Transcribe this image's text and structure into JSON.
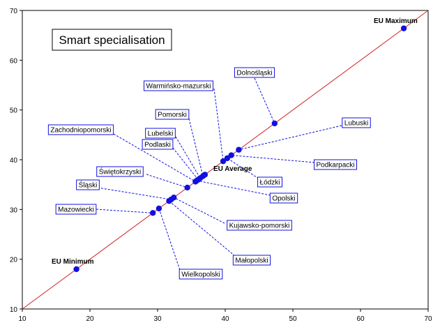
{
  "chart_data": {
    "type": "scatter",
    "title": "Smart specialisation",
    "xlabel": "",
    "ylabel": "",
    "xlim": [
      10,
      70
    ],
    "ylim": [
      10,
      70
    ],
    "xticks": [
      10,
      20,
      30,
      40,
      50,
      60,
      70
    ],
    "yticks": [
      10,
      20,
      30,
      40,
      50,
      60,
      70
    ],
    "grid": false,
    "reference_line": {
      "from": [
        10,
        10
      ],
      "to": [
        70,
        70
      ],
      "color": "#d22020"
    },
    "point_color": "#1010e0",
    "points": [
      {
        "name": "EU Maximum",
        "x": 66.4,
        "y": 66.4
      },
      {
        "name": "EU Minimum",
        "x": 18.0,
        "y": 18.0
      },
      {
        "name": "EU Average",
        "x": 37.0,
        "y": 37.0
      },
      {
        "name": "Dolnośląski",
        "x": 47.3,
        "y": 47.3
      },
      {
        "name": "Lubuski",
        "x": 42.0,
        "y": 42.0
      },
      {
        "name": "Podkarpacki",
        "x": 40.9,
        "y": 40.9
      },
      {
        "name": "Warmińsko-mazurski",
        "x": 39.7,
        "y": 39.7
      },
      {
        "name": "Pomorski",
        "x": 36.7,
        "y": 36.7
      },
      {
        "name": "Lubelski",
        "x": 36.3,
        "y": 36.3
      },
      {
        "name": "Podlaski",
        "x": 36.0,
        "y": 36.0
      },
      {
        "name": "Łódzki",
        "x": 40.3,
        "y": 40.3
      },
      {
        "name": "Zachodniopomorski",
        "x": 35.6,
        "y": 35.6
      },
      {
        "name": "Opolski",
        "x": 35.8,
        "y": 35.8
      },
      {
        "name": "Świętokrzyski",
        "x": 34.4,
        "y": 34.4
      },
      {
        "name": "Śląski",
        "x": 32.0,
        "y": 32.0
      },
      {
        "name": "Kujawsko-pomorski",
        "x": 32.4,
        "y": 32.4
      },
      {
        "name": "Małopolski",
        "x": 31.7,
        "y": 31.7
      },
      {
        "name": "Mazowiecki",
        "x": 29.3,
        "y": 29.3
      },
      {
        "name": "Wielkopolski",
        "x": 30.2,
        "y": 30.2
      }
    ]
  }
}
